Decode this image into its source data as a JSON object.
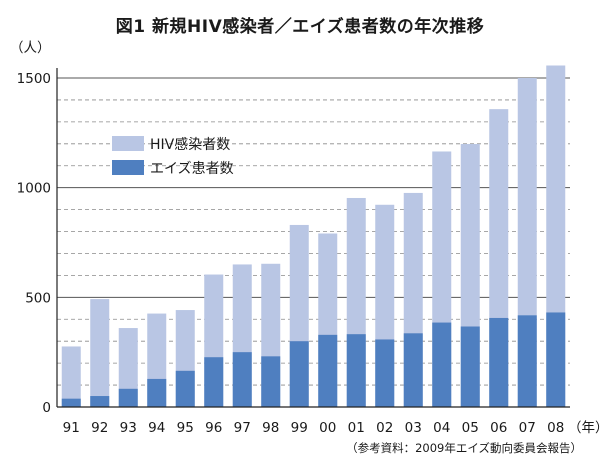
{
  "chart_data": {
    "type": "bar",
    "stacking": "overlay",
    "title": "図1 新規HIV感染者／エイズ患者数の年次推移",
    "y_unit_label": "（人）",
    "x_unit_label": "（年）",
    "ylim": [
      0,
      1500
    ],
    "y_ticks": [
      0,
      500,
      1000,
      1500
    ],
    "gridlines": "dashed, every 100",
    "legend_position": "upper-left",
    "categories": [
      "91",
      "92",
      "93",
      "94",
      "95",
      "96",
      "97",
      "98",
      "99",
      "00",
      "01",
      "02",
      "03",
      "04",
      "05",
      "06",
      "07",
      "08"
    ],
    "series": [
      {
        "name": "HIV感染者数",
        "color": "#b9c6e4",
        "values": [
          238,
          442,
          277,
          298,
          277,
          377,
          400,
          422,
          530,
          462,
          621,
          614,
          640,
          780,
          832,
          952,
          1082,
          1126
        ]
      },
      {
        "name": "エイズ患者数",
        "color": "#4f7fc0",
        "values": [
          38,
          50,
          83,
          128,
          165,
          227,
          250,
          231,
          300,
          329,
          332,
          308,
          336,
          385,
          367,
          406,
          418,
          431
        ]
      }
    ],
    "source": "（参考資料：2009年エイズ動向委員会報告）"
  }
}
